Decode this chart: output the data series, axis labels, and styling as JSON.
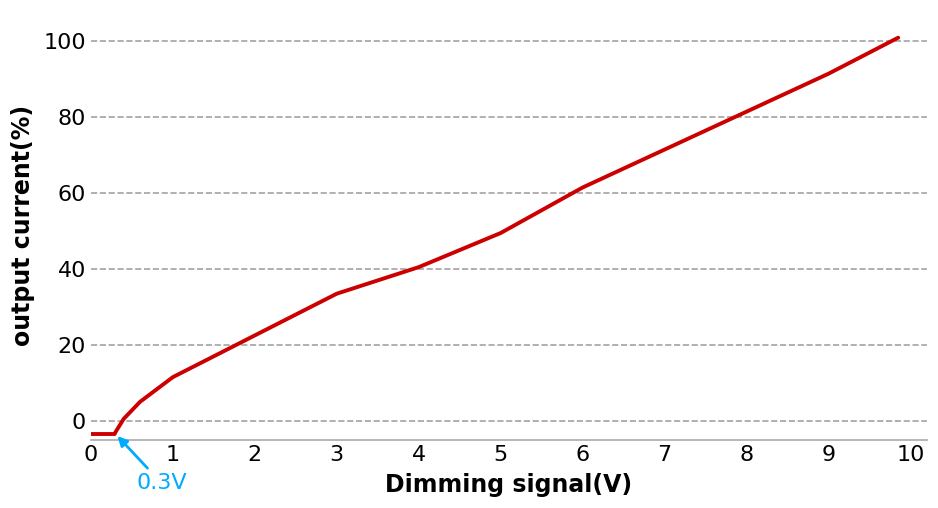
{
  "xlabel": "Dimming signal(V)",
  "ylabel": "output current(%)",
  "xlim": [
    0,
    10.2
  ],
  "ylim": [
    -5,
    108
  ],
  "xticks": [
    0,
    1,
    2,
    3,
    4,
    5,
    6,
    7,
    8,
    9,
    10
  ],
  "yticks": [
    0,
    20,
    40,
    60,
    80,
    100
  ],
  "line_color": "#cc0000",
  "line_width": 2.8,
  "grid_color": "#999999",
  "grid_linestyle": "--",
  "annotation_text": "0.3V",
  "annotation_color": "#00aaff",
  "curve_x": [
    0.0,
    0.29,
    0.3,
    0.4,
    0.6,
    1.0,
    2.0,
    3.0,
    4.0,
    5.0,
    6.0,
    7.0,
    8.0,
    9.0,
    9.85
  ],
  "curve_y": [
    -3.5,
    -3.5,
    -3.0,
    0.5,
    5.0,
    11.5,
    22.5,
    33.5,
    40.5,
    49.5,
    61.5,
    71.5,
    81.5,
    91.5,
    101.0
  ],
  "background_color": "#ffffff",
  "xlabel_fontsize": 17,
  "ylabel_fontsize": 17,
  "tick_fontsize": 16,
  "annotation_fontsize": 16,
  "figwidth": 9.38,
  "figheight": 5.08,
  "dpi": 100
}
